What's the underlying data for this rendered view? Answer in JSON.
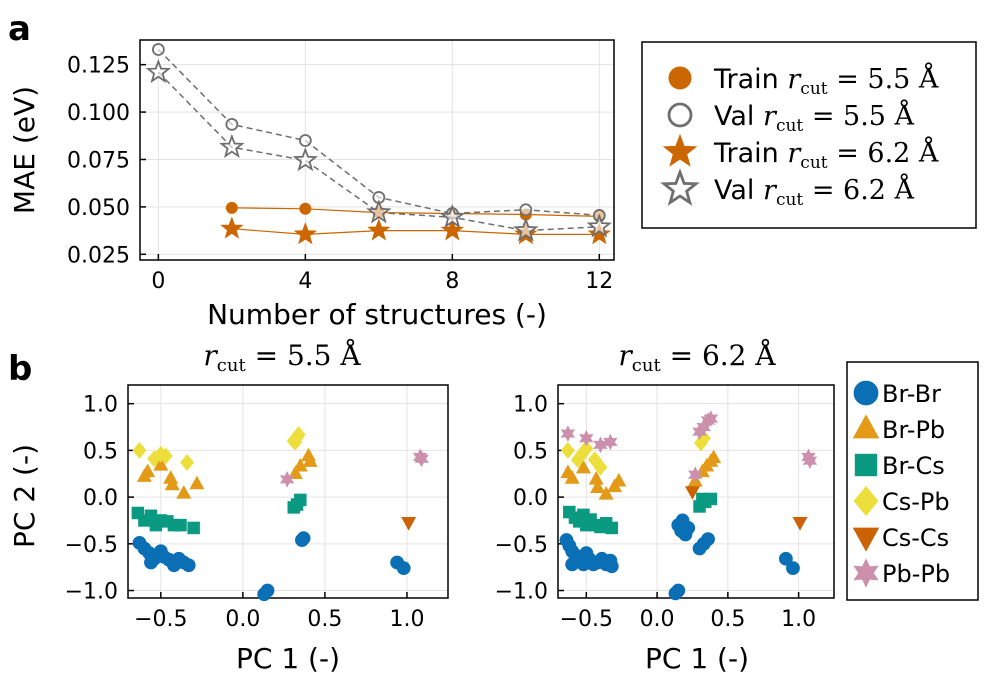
{
  "chart_data": [
    {
      "type": "line",
      "panel_label": "a",
      "xlabel": "Number of structures (-)",
      "ylabel": "MAE (eV)",
      "xlim": [
        -0.5,
        12.4
      ],
      "ylim": [
        0.022,
        0.138
      ],
      "xticks": [
        "0",
        "4",
        "8",
        "12"
      ],
      "yticks": [
        "0.025",
        "0.050",
        "0.075",
        "0.100",
        "0.125"
      ],
      "grid": true,
      "legend_position": "right-outside",
      "series": [
        {
          "name": "Train",
          "cutoff_label": "r_cut = 5.5 Å",
          "marker": "circle-filled",
          "color": "#cc6600",
          "x": [
            2,
            4,
            6,
            8,
            10,
            12
          ],
          "y": [
            0.0495,
            0.049,
            0.047,
            0.0465,
            0.046,
            0.045
          ]
        },
        {
          "name": "Val",
          "cutoff_label": "r_cut = 5.5 Å",
          "marker": "circle-open",
          "color": "#6e6e6e",
          "x": [
            0,
            2,
            4,
            6,
            8,
            10,
            12
          ],
          "y": [
            0.133,
            0.0935,
            0.085,
            0.055,
            0.0465,
            0.0485,
            0.0455
          ]
        },
        {
          "name": "Train",
          "cutoff_label": "r_cut = 6.2 Å",
          "marker": "star-filled",
          "color": "#cc6600",
          "x": [
            2,
            4,
            6,
            8,
            10,
            12
          ],
          "y": [
            0.0385,
            0.0355,
            0.0375,
            0.0375,
            0.0355,
            0.0355
          ]
        },
        {
          "name": "Val",
          "cutoff_label": "r_cut = 6.2 Å",
          "marker": "star-open",
          "color": "#6e6e6e",
          "x": [
            0,
            2,
            4,
            6,
            8,
            10,
            12
          ],
          "y": [
            0.121,
            0.0815,
            0.0745,
            0.047,
            0.0445,
            0.0375,
            0.0395
          ]
        }
      ]
    },
    {
      "type": "scatter",
      "panel_label": "b",
      "title_var": "r",
      "title_sub": "cut",
      "title_value": " = 5.5 Å",
      "xlabel": "PC 1 (-)",
      "ylabel": "PC 2 (-)",
      "xlim": [
        -0.7,
        1.25
      ],
      "ylim": [
        -1.08,
        1.2
      ],
      "xticks": [
        "-0.5",
        "0.0",
        "0.5",
        "1.0"
      ],
      "yticks": [
        "-1.0",
        "-0.5",
        "0.0",
        "0.5",
        "1.0"
      ],
      "grid": true,
      "series": [
        {
          "name": "Br-Br",
          "points": [
            [
              -0.63,
              -0.49
            ],
            [
              -0.6,
              -0.55
            ],
            [
              -0.57,
              -0.6
            ],
            [
              -0.54,
              -0.66
            ],
            [
              -0.5,
              -0.58
            ],
            [
              -0.48,
              -0.64
            ],
            [
              -0.45,
              -0.67
            ],
            [
              -0.42,
              -0.73
            ],
            [
              -0.39,
              -0.66
            ],
            [
              -0.36,
              -0.7
            ],
            [
              -0.33,
              -0.73
            ],
            [
              -0.56,
              -0.7
            ],
            [
              0.37,
              -0.44
            ],
            [
              0.36,
              -0.46
            ],
            [
              0.15,
              -1.0
            ],
            [
              0.13,
              -1.04
            ],
            [
              0.94,
              -0.7
            ],
            [
              0.98,
              -0.76
            ]
          ]
        },
        {
          "name": "Br-Pb",
          "points": [
            [
              -0.6,
              0.22
            ],
            [
              -0.58,
              0.27
            ],
            [
              -0.5,
              0.34
            ],
            [
              -0.44,
              0.2
            ],
            [
              -0.43,
              0.13
            ],
            [
              -0.36,
              0.04
            ],
            [
              -0.28,
              0.14
            ],
            [
              0.32,
              0.25
            ],
            [
              0.35,
              0.33
            ],
            [
              0.4,
              0.44
            ],
            [
              0.41,
              0.38
            ]
          ]
        },
        {
          "name": "Br-Cs",
          "points": [
            [
              -0.64,
              -0.17
            ],
            [
              -0.6,
              -0.25
            ],
            [
              -0.56,
              -0.2
            ],
            [
              -0.53,
              -0.3
            ],
            [
              -0.5,
              -0.25
            ],
            [
              -0.46,
              -0.26
            ],
            [
              -0.42,
              -0.3
            ],
            [
              -0.38,
              -0.3
            ],
            [
              -0.3,
              -0.33
            ],
            [
              0.35,
              -0.03
            ],
            [
              0.33,
              -0.08
            ],
            [
              0.31,
              -0.11
            ]
          ]
        },
        {
          "name": "Cs-Pb",
          "points": [
            [
              -0.63,
              0.5
            ],
            [
              -0.54,
              0.41
            ],
            [
              -0.5,
              0.46
            ],
            [
              -0.47,
              0.44
            ],
            [
              -0.34,
              0.37
            ],
            [
              0.32,
              0.59
            ],
            [
              0.33,
              0.64
            ],
            [
              0.34,
              0.67
            ],
            [
              0.31,
              0.6
            ]
          ]
        },
        {
          "name": "Cs-Cs",
          "points": [
            [
              1.01,
              -0.27
            ]
          ]
        },
        {
          "name": "Pb-Pb",
          "points": [
            [
              0.27,
              0.19
            ],
            [
              1.08,
              0.43
            ],
            [
              1.09,
              0.41
            ]
          ]
        }
      ]
    },
    {
      "type": "scatter",
      "title_var": "r",
      "title_sub": "cut",
      "title_value": " = 6.2 Å",
      "xlabel": "PC 1 (-)",
      "ylabel": "",
      "xlim": [
        -0.7,
        1.25
      ],
      "ylim": [
        -1.08,
        1.2
      ],
      "xticks": [
        "-0.5",
        "0.0",
        "0.5",
        "1.0"
      ],
      "yticks": [
        "-1.0",
        "-0.5",
        "0.0",
        "0.5",
        "1.0"
      ],
      "grid": true,
      "series": [
        {
          "name": "Br-Br",
          "points": [
            [
              -0.64,
              -0.46
            ],
            [
              -0.62,
              -0.52
            ],
            [
              -0.6,
              -0.58
            ],
            [
              -0.58,
              -0.62
            ],
            [
              -0.55,
              -0.68
            ],
            [
              -0.52,
              -0.72
            ],
            [
              -0.5,
              -0.6
            ],
            [
              -0.48,
              -0.66
            ],
            [
              -0.45,
              -0.72
            ],
            [
              -0.42,
              -0.7
            ],
            [
              -0.39,
              -0.66
            ],
            [
              -0.36,
              -0.72
            ],
            [
              -0.33,
              -0.68
            ],
            [
              -0.32,
              -0.74
            ],
            [
              -0.6,
              -0.72
            ],
            [
              0.15,
              -0.3
            ],
            [
              0.17,
              -0.36
            ],
            [
              0.2,
              -0.4
            ],
            [
              0.22,
              -0.33
            ],
            [
              0.18,
              -0.25
            ],
            [
              0.33,
              -0.5
            ],
            [
              0.36,
              -0.45
            ],
            [
              0.3,
              -0.55
            ],
            [
              0.15,
              -1.0
            ],
            [
              0.13,
              -1.03
            ],
            [
              0.91,
              -0.66
            ],
            [
              0.96,
              -0.76
            ]
          ]
        },
        {
          "name": "Br-Pb",
          "points": [
            [
              -0.63,
              0.26
            ],
            [
              -0.6,
              0.2
            ],
            [
              -0.52,
              0.31
            ],
            [
              -0.43,
              0.19
            ],
            [
              -0.42,
              0.1
            ],
            [
              -0.36,
              0.03
            ],
            [
              -0.3,
              0.11
            ],
            [
              -0.27,
              0.17
            ],
            [
              0.27,
              0.17
            ],
            [
              0.32,
              0.27
            ],
            [
              0.35,
              0.33
            ],
            [
              0.4,
              0.42
            ],
            [
              0.38,
              0.38
            ]
          ]
        },
        {
          "name": "Br-Cs",
          "points": [
            [
              -0.62,
              -0.16
            ],
            [
              -0.58,
              -0.22
            ],
            [
              -0.55,
              -0.26
            ],
            [
              -0.52,
              -0.19
            ],
            [
              -0.5,
              -0.3
            ],
            [
              -0.47,
              -0.24
            ],
            [
              -0.44,
              -0.3
            ],
            [
              -0.4,
              -0.32
            ],
            [
              -0.36,
              -0.28
            ],
            [
              -0.32,
              -0.33
            ],
            [
              0.38,
              -0.02
            ],
            [
              0.34,
              -0.05
            ],
            [
              0.3,
              -0.1
            ],
            [
              0.32,
              -0.02
            ]
          ]
        },
        {
          "name": "Cs-Pb",
          "points": [
            [
              -0.63,
              0.5
            ],
            [
              -0.56,
              0.4
            ],
            [
              -0.53,
              0.46
            ],
            [
              -0.5,
              0.52
            ],
            [
              -0.44,
              0.4
            ],
            [
              -0.4,
              0.32
            ],
            [
              0.31,
              0.58
            ],
            [
              0.33,
              0.63
            ]
          ]
        },
        {
          "name": "Cs-Cs",
          "points": [
            [
              0.25,
              0.06
            ],
            [
              1.01,
              -0.27
            ]
          ]
        },
        {
          "name": "Pb-Pb",
          "points": [
            [
              -0.63,
              0.68
            ],
            [
              -0.5,
              0.63
            ],
            [
              -0.4,
              0.56
            ],
            [
              -0.33,
              0.59
            ],
            [
              0.33,
              0.75
            ],
            [
              0.36,
              0.82
            ],
            [
              0.38,
              0.84
            ],
            [
              0.3,
              0.7
            ],
            [
              0.27,
              0.24
            ],
            [
              1.07,
              0.43
            ],
            [
              1.08,
              0.39
            ]
          ]
        }
      ]
    }
  ],
  "scatter_legend": {
    "entries": [
      {
        "name": "Br-Br",
        "marker": "circle",
        "color": "#0a6fb5"
      },
      {
        "name": "Br-Pb",
        "marker": "triangle-up",
        "color": "#e39a16"
      },
      {
        "name": "Br-Cs",
        "marker": "square",
        "color": "#0a9a82"
      },
      {
        "name": "Cs-Pb",
        "marker": "diamond",
        "color": "#ecdf3c"
      },
      {
        "name": "Cs-Cs",
        "marker": "triangle-down",
        "color": "#cc6206"
      },
      {
        "name": "Pb-Pb",
        "marker": "star6",
        "color": "#cc90ad"
      }
    ]
  }
}
